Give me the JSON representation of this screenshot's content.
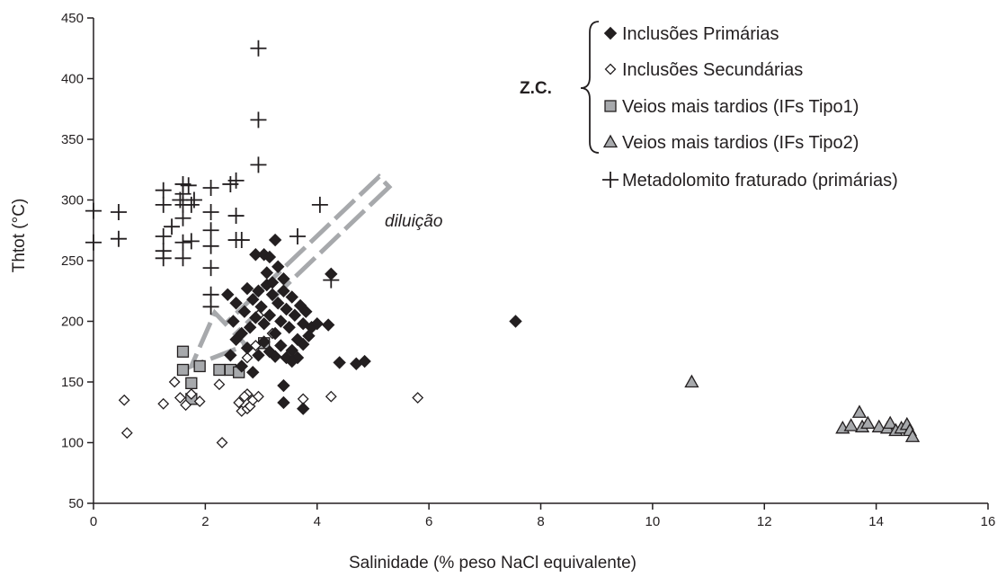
{
  "chart_data": {
    "type": "scatter",
    "title": "",
    "xlabel": "Salinidade (% peso NaCl equivalente)",
    "ylabel": "Thtot (°C)",
    "xlim": [
      0,
      16
    ],
    "ylim": [
      50,
      450
    ],
    "xticks": [
      0,
      2,
      4,
      6,
      8,
      10,
      12,
      14,
      16
    ],
    "yticks": [
      50,
      100,
      150,
      200,
      250,
      300,
      350,
      400,
      450
    ],
    "grid": false,
    "legend_position": "top-right",
    "legend_group_label": "Z.C.",
    "annotation": "diluição",
    "annotation_arrow": {
      "from": [
        5.2,
        315
      ],
      "to": [
        1.75,
        163
      ]
    },
    "series": [
      {
        "name": "Inclusões Primárias",
        "marker": "diamond-filled",
        "color": "#231f20",
        "points": [
          [
            2.4,
            222
          ],
          [
            2.5,
            200
          ],
          [
            2.55,
            215
          ],
          [
            2.65,
            190
          ],
          [
            2.7,
            208
          ],
          [
            2.75,
            227
          ],
          [
            2.8,
            195
          ],
          [
            2.85,
            218
          ],
          [
            2.9,
            203
          ],
          [
            2.95,
            225
          ],
          [
            3.0,
            212
          ],
          [
            3.05,
            198
          ],
          [
            3.1,
            230
          ],
          [
            3.15,
            205
          ],
          [
            3.2,
            222
          ],
          [
            3.25,
            190
          ],
          [
            3.3,
            215
          ],
          [
            3.35,
            200
          ],
          [
            3.4,
            225
          ],
          [
            3.45,
            210
          ],
          [
            3.5,
            195
          ],
          [
            3.55,
            220
          ],
          [
            3.6,
            205
          ],
          [
            3.65,
            185
          ],
          [
            3.7,
            213
          ],
          [
            3.75,
            198
          ],
          [
            3.8,
            208
          ],
          [
            3.85,
            188
          ],
          [
            2.55,
            185
          ],
          [
            2.75,
            178
          ],
          [
            2.95,
            172
          ],
          [
            3.05,
            183
          ],
          [
            3.15,
            175
          ],
          [
            3.25,
            171
          ],
          [
            3.35,
            180
          ],
          [
            3.45,
            170
          ],
          [
            3.55,
            176
          ],
          [
            3.65,
            170
          ],
          [
            3.75,
            181
          ],
          [
            3.55,
            167
          ],
          [
            3.9,
            195
          ],
          [
            2.45,
            172
          ],
          [
            2.65,
            163
          ],
          [
            2.85,
            158
          ],
          [
            2.9,
            255
          ],
          [
            3.05,
            255
          ],
          [
            3.15,
            253
          ],
          [
            3.25,
            267
          ],
          [
            3.1,
            240
          ],
          [
            3.3,
            245
          ],
          [
            3.4,
            235
          ],
          [
            3.2,
            232
          ],
          [
            3.4,
            147
          ],
          [
            3.4,
            133
          ],
          [
            3.75,
            128
          ],
          [
            4.0,
            198
          ],
          [
            4.2,
            197
          ],
          [
            4.25,
            239
          ],
          [
            4.4,
            166
          ],
          [
            4.7,
            165
          ],
          [
            4.85,
            167
          ],
          [
            7.55,
            200
          ]
        ]
      },
      {
        "name": "Inclusões Secundárias",
        "marker": "diamond-open",
        "color": "#231f20",
        "points": [
          [
            0.55,
            135
          ],
          [
            0.6,
            108
          ],
          [
            1.25,
            132
          ],
          [
            1.45,
            150
          ],
          [
            1.55,
            137
          ],
          [
            1.65,
            131
          ],
          [
            1.75,
            140
          ],
          [
            1.9,
            134
          ],
          [
            2.25,
            148
          ],
          [
            2.3,
            100
          ],
          [
            2.6,
            133
          ],
          [
            2.65,
            126
          ],
          [
            2.75,
            140
          ],
          [
            2.75,
            128
          ],
          [
            2.8,
            130
          ],
          [
            2.85,
            135
          ],
          [
            2.7,
            138
          ],
          [
            2.95,
            138
          ],
          [
            3.75,
            136
          ],
          [
            4.25,
            138
          ],
          [
            5.8,
            137
          ],
          [
            2.95,
            205
          ],
          [
            3.2,
            190
          ],
          [
            2.75,
            170
          ],
          [
            3.5,
            172
          ],
          [
            2.9,
            180
          ]
        ]
      },
      {
        "name": "Veios mais tardios (IFs Tipo1)",
        "marker": "square",
        "color": "#a7a9ac",
        "points": [
          [
            1.6,
            175
          ],
          [
            1.6,
            160
          ],
          [
            1.75,
            149
          ],
          [
            1.75,
            136
          ],
          [
            1.9,
            163
          ],
          [
            2.25,
            160
          ],
          [
            2.45,
            160
          ],
          [
            2.6,
            158
          ],
          [
            3.05,
            182
          ]
        ]
      },
      {
        "name": "Veios mais tardios (IFs Tipo2)",
        "marker": "triangle",
        "color": "#a7a9ac",
        "points": [
          [
            10.7,
            150
          ],
          [
            13.4,
            112
          ],
          [
            13.55,
            114
          ],
          [
            13.7,
            125
          ],
          [
            13.75,
            113
          ],
          [
            13.85,
            116
          ],
          [
            14.05,
            113
          ],
          [
            14.2,
            112
          ],
          [
            14.25,
            116
          ],
          [
            14.35,
            110
          ],
          [
            14.45,
            112
          ],
          [
            14.55,
            115
          ],
          [
            14.6,
            110
          ],
          [
            14.65,
            105
          ]
        ]
      },
      {
        "name": "Metadolomito fraturado (primárias)",
        "marker": "plus",
        "color": "#231f20",
        "points": [
          [
            2.95,
            425
          ],
          [
            2.95,
            366
          ],
          [
            2.95,
            329
          ],
          [
            0.0,
            291
          ],
          [
            0.0,
            265
          ],
          [
            0.45,
            290
          ],
          [
            0.45,
            268
          ],
          [
            1.25,
            308
          ],
          [
            1.25,
            296
          ],
          [
            1.25,
            270
          ],
          [
            1.25,
            258
          ],
          [
            1.25,
            252
          ],
          [
            1.4,
            278
          ],
          [
            1.55,
            300
          ],
          [
            1.6,
            313
          ],
          [
            1.6,
            305
          ],
          [
            1.6,
            296
          ],
          [
            1.6,
            285
          ],
          [
            1.6,
            265
          ],
          [
            1.6,
            252
          ],
          [
            1.7,
            312
          ],
          [
            1.75,
            296
          ],
          [
            1.75,
            266
          ],
          [
            1.8,
            300
          ],
          [
            2.1,
            310
          ],
          [
            2.1,
            290
          ],
          [
            2.1,
            275
          ],
          [
            2.1,
            262
          ],
          [
            2.1,
            244
          ],
          [
            2.1,
            222
          ],
          [
            2.1,
            212
          ],
          [
            2.45,
            313
          ],
          [
            2.55,
            316
          ],
          [
            2.55,
            287
          ],
          [
            2.55,
            267
          ],
          [
            2.65,
            267
          ],
          [
            3.65,
            270
          ],
          [
            4.05,
            296
          ],
          [
            4.25,
            234
          ]
        ]
      }
    ]
  }
}
